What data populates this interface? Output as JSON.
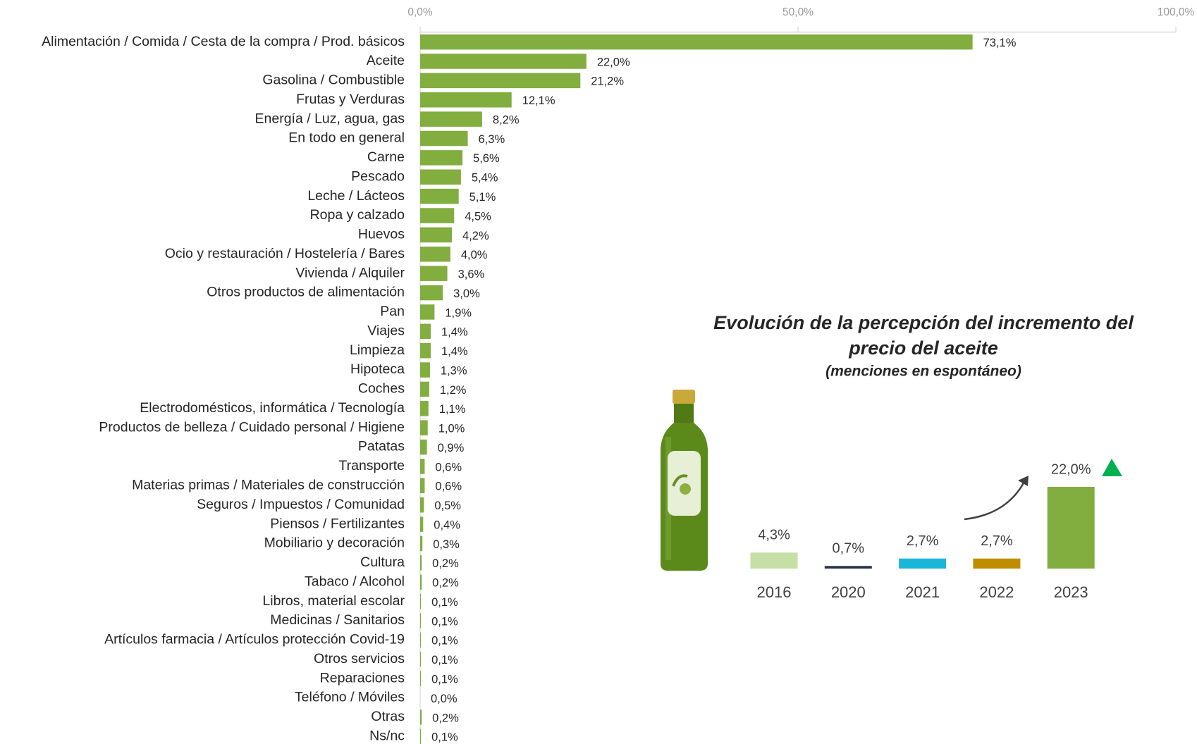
{
  "chart_data": [
    {
      "type": "bar",
      "orientation": "horizontal",
      "categories": [
        "Alimentación / Comida / Cesta de la compra / Prod. básicos",
        "Aceite",
        "Gasolina / Combustible",
        "Frutas y Verduras",
        "Energía / Luz, agua, gas",
        "En todo en general",
        "Carne",
        "Pescado",
        "Leche / Lácteos",
        "Ropa y calzado",
        "Huevos",
        "Ocio y restauración / Hostelería / Bares",
        "Vivienda / Alquiler",
        "Otros productos de alimentación",
        "Pan",
        "Viajes",
        "Limpieza",
        "Hipoteca",
        "Coches",
        "Electrodomésticos, informática / Tecnología",
        "Productos de belleza / Cuidado personal / Higiene",
        "Patatas",
        "Transporte",
        "Materias primas / Materiales de construcción",
        "Seguros / Impuestos / Comunidad",
        "Piensos / Fertilizantes",
        "Mobiliario y decoración",
        "Cultura",
        "Tabaco / Alcohol",
        "Libros, material escolar",
        "Medicinas / Sanitarios",
        "Artículos farmacia / Artículos protección Covid-19",
        "Otros servicios",
        "Reparaciones",
        "Teléfono / Móviles",
        "Otras",
        "Ns/nc"
      ],
      "values": [
        73.1,
        22.0,
        21.2,
        12.1,
        8.2,
        6.3,
        5.6,
        5.4,
        5.1,
        4.5,
        4.2,
        4.0,
        3.6,
        3.0,
        1.9,
        1.4,
        1.4,
        1.3,
        1.2,
        1.1,
        1.0,
        0.9,
        0.6,
        0.6,
        0.5,
        0.4,
        0.3,
        0.2,
        0.2,
        0.1,
        0.1,
        0.1,
        0.1,
        0.1,
        0.0,
        0.2,
        0.1
      ],
      "value_labels": [
        "73,1%",
        "22,0%",
        "21,2%",
        "12,1%",
        "8,2%",
        "6,3%",
        "5,6%",
        "5,4%",
        "5,1%",
        "4,5%",
        "4,2%",
        "4,0%",
        "3,6%",
        "3,0%",
        "1,9%",
        "1,4%",
        "1,4%",
        "1,3%",
        "1,2%",
        "1,1%",
        "1,0%",
        "0,9%",
        "0,6%",
        "0,6%",
        "0,5%",
        "0,4%",
        "0,3%",
        "0,2%",
        "0,2%",
        "0,1%",
        "0,1%",
        "0,1%",
        "0,1%",
        "0,1%",
        "0,0%",
        "0,2%",
        "0,1%"
      ],
      "color": "#82ad3f",
      "xlim": [
        0,
        100
      ],
      "xticks": [
        {
          "value": 0,
          "label": "0,0%"
        },
        {
          "value": 50,
          "label": "50,0%"
        },
        {
          "value": 100,
          "label": "100,0%"
        }
      ]
    },
    {
      "type": "bar",
      "orientation": "vertical",
      "title": "Evolución de la percepción del incremento del precio del aceite",
      "subtitle": "(menciones en espontáneo)",
      "categories": [
        "2016",
        "2020",
        "2021",
        "2022",
        "2023"
      ],
      "values": [
        4.3,
        0.7,
        2.7,
        2.7,
        22.0
      ],
      "value_labels": [
        "4,3%",
        "0,7%",
        "2,7%",
        "2,7%",
        "22,0%"
      ],
      "colors": [
        "#c6dfa4",
        "#263341",
        "#1ab6d8",
        "#c08d00",
        "#82ad3f"
      ]
    }
  ]
}
